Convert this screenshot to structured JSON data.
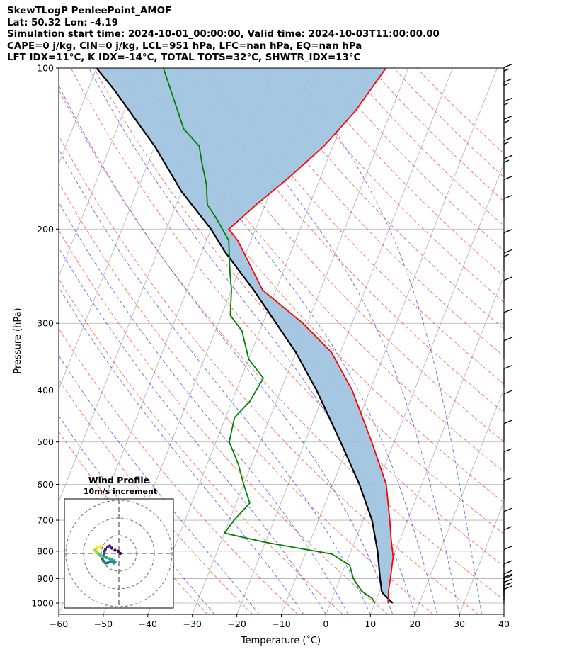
{
  "header": {
    "title": "SkewTLogP PenleePoint_AMOF",
    "location": "Lat: 50.32   Lon: -4.19",
    "times": "Simulation start time: 2024-10-01_00:00:00, Valid time: 2024-10-03T11:00:00.00",
    "indices_1": "CAPE=0 j/kg, CIN=0 j/kg, LCL=951 hPa, LFC=nan hPa, EQ=nan hPa",
    "indices_2": "LFT IDX=11°C, K IDX=-14°C, TOTAL TOTS=32°C, SHWTR_IDX=13°C"
  },
  "chart_data": [
    {
      "type": "line",
      "subtype": "skew-T log-P",
      "xlabel": "Temperature (˚C)",
      "ylabel": "Pressure (hPa)",
      "xlim": [
        -60,
        40
      ],
      "ylim": [
        1050,
        100
      ],
      "yscale": "log",
      "xticks": [
        "−60",
        "−50",
        "−40",
        "−30",
        "−20",
        "−10",
        "0",
        "10",
        "20",
        "30",
        "40"
      ],
      "yticks": [
        "100",
        "200",
        "300",
        "400",
        "500",
        "600",
        "700",
        "800",
        "900",
        "1000"
      ],
      "grid": true,
      "series": [
        {
          "role": "temperature",
          "color": "#ff0000",
          "points": [
            [
              13,
              1000
            ],
            [
              12,
              950
            ],
            [
              11,
              880
            ],
            [
              10,
              820
            ],
            [
              8,
              760
            ],
            [
              6,
              700
            ],
            [
              2,
              600
            ],
            [
              -5,
              500
            ],
            [
              -14,
              400
            ],
            [
              -22,
              340
            ],
            [
              -31,
              300
            ],
            [
              -43,
              260
            ],
            [
              -53,
              210
            ],
            [
              -56,
              200
            ],
            [
              -52,
              180
            ],
            [
              -47,
              160
            ],
            [
              -42,
              140
            ],
            [
              -38,
              120
            ],
            [
              -35,
              100
            ]
          ]
        },
        {
          "role": "dewpoint",
          "color": "#008000",
          "points": [
            [
              10,
              1000
            ],
            [
              9,
              980
            ],
            [
              6,
              950
            ],
            [
              3,
              900
            ],
            [
              1,
              850
            ],
            [
              -4,
              810
            ],
            [
              -20,
              770
            ],
            [
              -30,
              740
            ],
            [
              -29,
              700
            ],
            [
              -27,
              650
            ],
            [
              -30,
              600
            ],
            [
              -33,
              550
            ],
            [
              -37,
              500
            ],
            [
              -38,
              450
            ],
            [
              -36,
              420
            ],
            [
              -35,
              380
            ],
            [
              -40,
              350
            ],
            [
              -44,
              310
            ],
            [
              -48,
              290
            ],
            [
              -50,
              260
            ],
            [
              -52,
              240
            ],
            [
              -55,
              210
            ],
            [
              -60,
              190
            ],
            [
              -63,
              180
            ],
            [
              -65,
              165
            ],
            [
              -68,
              150
            ],
            [
              -70,
              140
            ],
            [
              -75,
              130
            ],
            [
              -85,
              100
            ]
          ]
        },
        {
          "role": "parcel",
          "color": "#000000",
          "points": [
            [
              14,
              1000
            ],
            [
              11,
              960
            ],
            [
              10.5,
              951
            ],
            [
              9,
              900
            ],
            [
              6,
              800
            ],
            [
              2,
              700
            ],
            [
              -4,
              600
            ],
            [
              -12,
              500
            ],
            [
              -22,
              400
            ],
            [
              -30,
              340
            ],
            [
              -37,
              300
            ],
            [
              -45,
              260
            ],
            [
              -55,
              220
            ],
            [
              -60,
              200
            ],
            [
              -70,
              170
            ],
            [
              -80,
              140
            ],
            [
              -94,
              110
            ],
            [
              -100,
              100
            ]
          ]
        }
      ],
      "shaded": {
        "role": "temperature-parcel area",
        "color": "#a1c4df"
      },
      "wind_barbs": [
        {
          "pressure": 1005,
          "speed_kt": 20
        },
        {
          "pressure": 990,
          "speed_kt": 20
        },
        {
          "pressure": 975,
          "speed_kt": 20
        },
        {
          "pressure": 955,
          "speed_kt": 20
        },
        {
          "pressure": 915,
          "speed_kt": 10
        },
        {
          "pressure": 860,
          "speed_kt": 10
        },
        {
          "pressure": 790,
          "speed_kt": 10
        },
        {
          "pressure": 730,
          "speed_kt": 10
        },
        {
          "pressure": 640,
          "speed_kt": 10
        },
        {
          "pressure": 565,
          "speed_kt": 10
        },
        {
          "pressure": 500,
          "speed_kt": 10
        },
        {
          "pressure": 440,
          "speed_kt": 10
        },
        {
          "pressure": 395,
          "speed_kt": 10
        },
        {
          "pressure": 350,
          "speed_kt": 10
        },
        {
          "pressure": 310,
          "speed_kt": 10
        },
        {
          "pressure": 270,
          "speed_kt": 10
        },
        {
          "pressure": 240,
          "speed_kt": 15
        },
        {
          "pressure": 220,
          "speed_kt": 10
        },
        {
          "pressure": 190,
          "speed_kt": 10
        },
        {
          "pressure": 175,
          "speed_kt": 10
        },
        {
          "pressure": 160,
          "speed_kt": 15
        },
        {
          "pressure": 148,
          "speed_kt": 15
        },
        {
          "pressure": 135,
          "speed_kt": 15
        },
        {
          "pressure": 125,
          "speed_kt": 15
        },
        {
          "pressure": 115,
          "speed_kt": 15
        },
        {
          "pressure": 108,
          "speed_kt": 15
        }
      ]
    },
    {
      "type": "scatter",
      "subtype": "hodograph",
      "title": "Wind Profile",
      "subtitle": "10m/s increment",
      "grid": true,
      "colormap": "viridis",
      "points": [
        [
          0,
          0
        ],
        [
          -2,
          2
        ],
        [
          -5,
          3
        ],
        [
          -8,
          5
        ],
        [
          -10,
          7
        ],
        [
          -12,
          6
        ],
        [
          -14,
          4
        ],
        [
          -15,
          2
        ],
        [
          -15,
          0
        ],
        [
          -16,
          -2
        ],
        [
          -17,
          -3
        ],
        [
          -17,
          -5
        ],
        [
          -16,
          -7
        ],
        [
          -14,
          -9
        ],
        [
          -12,
          -9
        ],
        [
          -10,
          -8
        ],
        [
          -8,
          -8
        ],
        [
          -6,
          -9
        ],
        [
          -5,
          -8
        ],
        [
          -6,
          -7
        ],
        [
          -8,
          -6
        ],
        [
          -10,
          -5
        ],
        [
          -13,
          -4
        ],
        [
          -15,
          -3
        ],
        [
          -17,
          -3
        ],
        [
          -19,
          -2
        ],
        [
          -20,
          -1
        ],
        [
          -21,
          0
        ],
        [
          -22,
          1
        ],
        [
          -23,
          2
        ],
        [
          -24,
          3
        ],
        [
          -23,
          4
        ],
        [
          -22,
          5
        ],
        [
          -21,
          6
        ],
        [
          -19,
          6
        ],
        [
          -18,
          7
        ]
      ]
    }
  ]
}
